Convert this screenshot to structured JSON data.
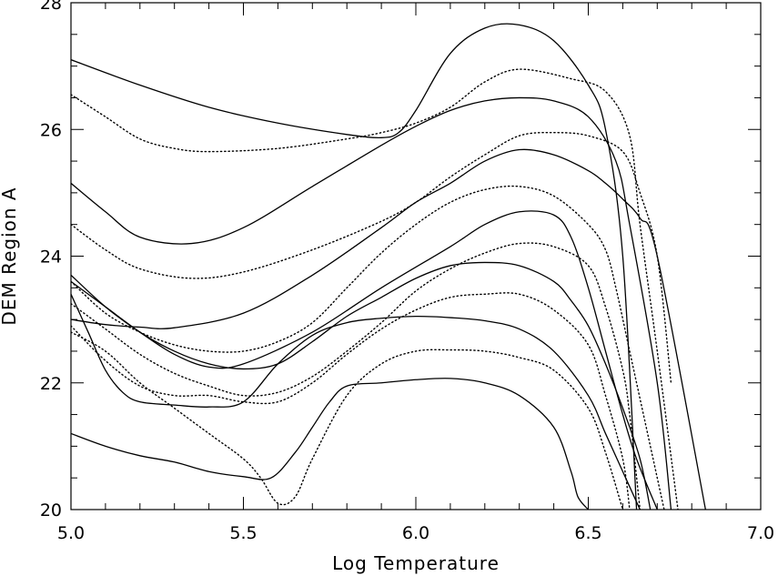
{
  "chart_data": {
    "type": "line",
    "xlabel": "Log Temperature",
    "ylabel": "DEM Region A",
    "xlim": [
      5.0,
      7.0
    ],
    "ylim": [
      20,
      28
    ],
    "xticks": [
      "5.0",
      "5.5",
      "6.0",
      "6.5",
      "7.0"
    ],
    "yticks": [
      "20",
      "22",
      "24",
      "26",
      "28"
    ],
    "grid": false,
    "line_color": "#000000",
    "series": [
      {
        "style": "solid",
        "x": [
          5.0,
          5.2,
          5.4,
          5.6,
          5.8,
          5.9,
          5.95,
          6.0,
          6.1,
          6.2,
          6.3,
          6.4,
          6.5,
          6.55,
          6.6,
          6.64
        ],
        "y": [
          27.1,
          26.7,
          26.35,
          26.1,
          25.92,
          25.87,
          25.95,
          26.3,
          27.2,
          27.6,
          27.65,
          27.4,
          26.7,
          26.0,
          24.0,
          20.0
        ]
      },
      {
        "style": "dotted",
        "x": [
          5.0,
          5.1,
          5.2,
          5.3,
          5.4,
          5.6,
          5.8,
          5.9,
          6.0,
          6.1,
          6.2,
          6.3,
          6.45,
          6.55,
          6.62,
          6.65,
          6.7,
          6.76
        ],
        "y": [
          26.55,
          26.2,
          25.85,
          25.7,
          25.65,
          25.7,
          25.85,
          25.95,
          26.1,
          26.35,
          26.75,
          26.95,
          26.8,
          26.6,
          25.9,
          24.5,
          22.5,
          20.0
        ]
      },
      {
        "style": "solid",
        "x": [
          5.0,
          5.1,
          5.2,
          5.35,
          5.5,
          5.7,
          5.9,
          6.0,
          6.1,
          6.2,
          6.3,
          6.4,
          6.5,
          6.58,
          6.62,
          6.7,
          6.74
        ],
        "y": [
          25.15,
          24.7,
          24.3,
          24.2,
          24.45,
          25.1,
          25.75,
          26.05,
          26.3,
          26.45,
          26.5,
          26.45,
          26.2,
          25.5,
          24.5,
          22.0,
          20.0
        ]
      },
      {
        "style": "dotted",
        "x": [
          5.0,
          5.1,
          5.2,
          5.35,
          5.5,
          5.7,
          5.9,
          6.0,
          6.1,
          6.2,
          6.3,
          6.4,
          6.5,
          6.6,
          6.65,
          6.7,
          6.74
        ],
        "y": [
          24.5,
          24.1,
          23.8,
          23.65,
          23.75,
          24.1,
          24.55,
          24.85,
          25.25,
          25.6,
          25.9,
          25.95,
          25.9,
          25.65,
          25.0,
          24.0,
          22.0
        ]
      },
      {
        "style": "solid",
        "x": [
          5.0,
          5.1,
          5.2,
          5.3,
          5.5,
          5.7,
          5.9,
          6.0,
          6.1,
          6.2,
          6.3,
          6.4,
          6.5,
          6.55,
          6.6,
          6.65,
          6.7,
          6.84
        ],
        "y": [
          23.0,
          22.92,
          22.88,
          22.87,
          23.1,
          23.7,
          24.45,
          24.85,
          25.15,
          25.5,
          25.68,
          25.6,
          25.35,
          25.15,
          24.9,
          24.6,
          24.0,
          20.0
        ]
      },
      {
        "style": "dotted",
        "x": [
          5.0,
          5.1,
          5.2,
          5.3,
          5.4,
          5.5,
          5.6,
          5.7,
          5.8,
          5.9,
          6.0,
          6.1,
          6.2,
          6.3,
          6.4,
          6.5,
          6.55,
          6.58,
          6.62,
          6.66,
          6.72
        ],
        "y": [
          23.6,
          23.1,
          22.8,
          22.6,
          22.5,
          22.5,
          22.65,
          22.95,
          23.5,
          24.05,
          24.5,
          24.85,
          25.05,
          25.1,
          24.95,
          24.5,
          24.1,
          23.5,
          22.5,
          21.5,
          20.0
        ]
      },
      {
        "style": "solid",
        "x": [
          5.0,
          5.1,
          5.2,
          5.3,
          5.4,
          5.5,
          5.7,
          5.9,
          6.1,
          6.2,
          6.3,
          6.4,
          6.45,
          6.5,
          6.55,
          6.6,
          6.64,
          6.7
        ],
        "y": [
          23.6,
          23.2,
          22.8,
          22.45,
          22.25,
          22.3,
          22.8,
          23.5,
          24.15,
          24.5,
          24.7,
          24.65,
          24.3,
          23.5,
          22.5,
          21.5,
          20.8,
          20.0
        ]
      },
      {
        "style": "dotted",
        "x": [
          5.0,
          5.1,
          5.2,
          5.3,
          5.4,
          5.5,
          5.6,
          5.7,
          5.8,
          5.9,
          6.0,
          6.1,
          6.2,
          6.3,
          6.4,
          6.5,
          6.55,
          6.6,
          6.62,
          6.65
        ],
        "y": [
          23.25,
          22.85,
          22.45,
          22.15,
          21.95,
          21.8,
          21.85,
          22.1,
          22.5,
          22.95,
          23.45,
          23.8,
          24.05,
          24.2,
          24.15,
          23.85,
          23.2,
          22.2,
          21.5,
          20.0
        ]
      },
      {
        "style": "solid",
        "x": [
          5.0,
          5.1,
          5.2,
          5.3,
          5.4,
          5.5,
          5.6,
          5.7,
          5.8,
          5.9,
          6.0,
          6.1,
          6.2,
          6.3,
          6.4,
          6.45,
          6.5,
          6.55,
          6.6,
          6.65,
          6.68
        ],
        "y": [
          23.7,
          23.2,
          22.8,
          22.5,
          22.3,
          22.22,
          22.3,
          22.65,
          23.05,
          23.35,
          23.65,
          23.85,
          23.9,
          23.85,
          23.6,
          23.3,
          22.9,
          22.3,
          21.6,
          20.8,
          20.0
        ]
      },
      {
        "style": "dotted",
        "x": [
          5.0,
          5.1,
          5.2,
          5.3,
          5.4,
          5.5,
          5.6,
          5.7,
          5.8,
          5.9,
          6.0,
          6.1,
          6.2,
          6.3,
          6.4,
          6.5,
          6.55,
          6.6,
          6.62
        ],
        "y": [
          22.9,
          22.35,
          21.95,
          21.8,
          21.8,
          21.7,
          21.7,
          22.0,
          22.45,
          22.85,
          23.15,
          23.35,
          23.4,
          23.4,
          23.15,
          22.6,
          21.8,
          20.8,
          20.0
        ]
      },
      {
        "style": "solid",
        "x": [
          5.0,
          5.05,
          5.1,
          5.15,
          5.2,
          5.3,
          5.4,
          5.5,
          5.6,
          5.7,
          5.8,
          5.9,
          6.0,
          6.1,
          6.2,
          6.3,
          6.4,
          6.5,
          6.55,
          6.6,
          6.65
        ],
        "y": [
          23.4,
          22.8,
          22.2,
          21.85,
          21.7,
          21.65,
          21.62,
          21.7,
          22.3,
          22.75,
          22.95,
          23.02,
          23.05,
          23.03,
          22.98,
          22.85,
          22.5,
          21.8,
          21.2,
          20.6,
          20.0
        ]
      },
      {
        "style": "dotted",
        "x": [
          5.0,
          5.1,
          5.2,
          5.3,
          5.4,
          5.5,
          5.55,
          5.6,
          5.65,
          5.7,
          5.8,
          5.9,
          6.0,
          6.1,
          6.2,
          6.3,
          6.4,
          6.5,
          6.55,
          6.6
        ],
        "y": [
          22.8,
          22.5,
          22.0,
          21.6,
          21.2,
          20.8,
          20.5,
          20.1,
          20.2,
          20.8,
          21.8,
          22.3,
          22.5,
          22.52,
          22.5,
          22.4,
          22.2,
          21.6,
          20.9,
          20.0
        ]
      },
      {
        "style": "solid",
        "x": [
          5.0,
          5.1,
          5.2,
          5.3,
          5.4,
          5.5,
          5.58,
          5.65,
          5.7,
          5.75,
          5.8,
          5.9,
          6.0,
          6.1,
          6.2,
          6.3,
          6.4,
          6.45,
          6.47,
          6.5
        ],
        "y": [
          21.2,
          21.0,
          20.85,
          20.75,
          20.6,
          20.52,
          20.5,
          20.9,
          21.3,
          21.7,
          21.95,
          22.0,
          22.05,
          22.07,
          22.0,
          21.8,
          21.3,
          20.6,
          20.2,
          20.0
        ]
      }
    ]
  }
}
